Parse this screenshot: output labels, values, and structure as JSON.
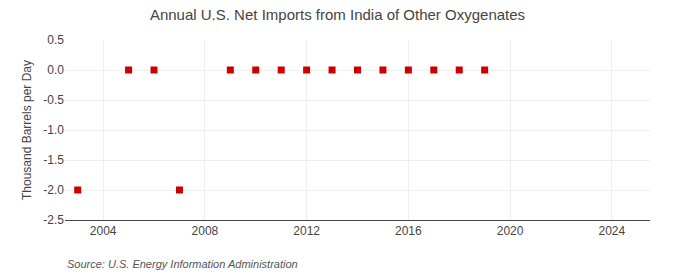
{
  "chart_data": {
    "type": "scatter",
    "title": "Annual U.S. Net Imports from India of Other Oxygenates",
    "ylabel": "Thousand Barrels per Day",
    "annotations": [
      "Source: U.S. Energy Information Administration"
    ],
    "xlim": [
      2002.5,
      2025.5
    ],
    "xticks": [
      2004,
      2008,
      2012,
      2016,
      2020,
      2024
    ],
    "ylim": [
      -2.5,
      0.5
    ],
    "yticks": [
      0.5,
      {
        "value": 0.0,
        "label": "0.0"
      },
      -0.5,
      {
        "value": -1.0,
        "label": "-1.0"
      },
      -1.5,
      {
        "value": -2.0,
        "label": "-2.0"
      },
      -2.5
    ],
    "grid": true,
    "series": [
      {
        "color": "#cc0000",
        "marker": "square",
        "x": [
          2005,
          2006,
          2009,
          2010,
          2011,
          2012,
          2013,
          2014,
          2015,
          2016,
          2017,
          2018,
          2019
        ],
        "values": [
          0.0,
          0.0,
          0.0,
          0.0,
          0.0,
          0.0,
          0.0,
          0.0,
          0.0,
          0.0,
          0.0,
          0.0,
          0.0
        ]
      },
      {
        "color": "#cc0000",
        "marker": "square",
        "x": [
          2003,
          2007
        ],
        "values": [
          -2.0,
          -2.0
        ]
      }
    ]
  }
}
